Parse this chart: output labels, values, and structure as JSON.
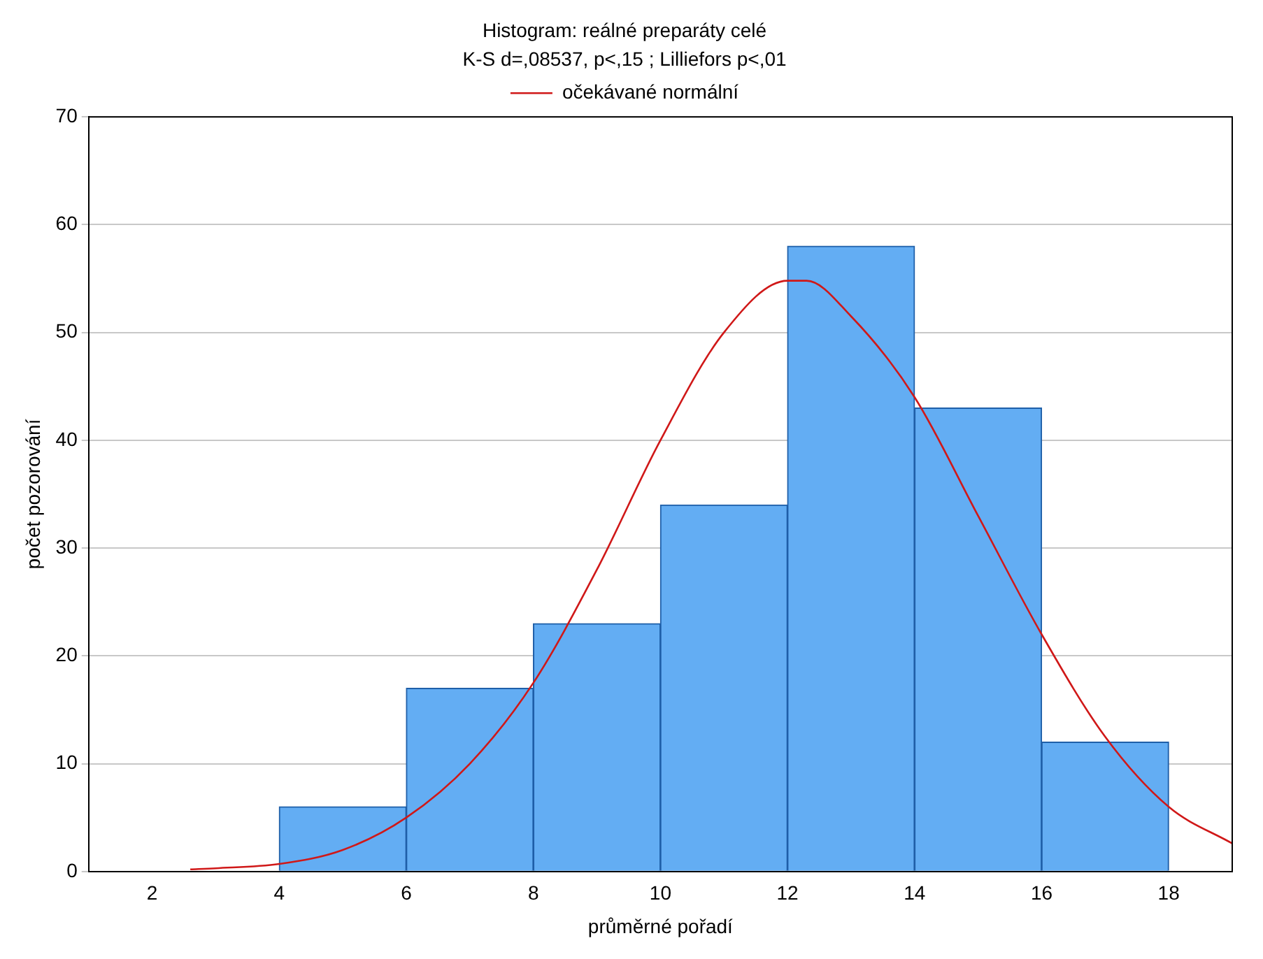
{
  "chart_data": {
    "type": "histogram",
    "title": "Histogram: reálné preparáty celé",
    "subtitle": "K-S d=,08537, p<,15 ; Lilliefors p<,01",
    "xlabel": "průměrné pořadí",
    "ylabel": "počet pozorování",
    "bins": [
      4,
      6,
      8,
      10,
      12,
      14,
      16,
      18
    ],
    "values": [
      6,
      17,
      23,
      34,
      58,
      43,
      12
    ],
    "color": "#63adf3",
    "series": [
      {
        "type": "line",
        "name": "očekávané normální",
        "color": "#d01818",
        "x": [
          2.6,
          3,
          4,
          5,
          6,
          7,
          8,
          9,
          10,
          11,
          12,
          12.3,
          13,
          14,
          15,
          16,
          17,
          18,
          19
        ],
        "values": [
          0.2,
          0.3,
          0.7,
          2,
          5,
          10,
          17.5,
          28,
          40,
          50,
          54.8,
          54.8,
          51.5,
          44,
          33,
          22,
          12.5,
          6,
          2.6
        ]
      }
    ],
    "xlim": [
      1,
      19
    ],
    "xticks": [
      2,
      4,
      6,
      8,
      10,
      12,
      14,
      16,
      18
    ],
    "ylim": [
      0,
      70
    ],
    "yticks": [
      0,
      10,
      20,
      30,
      40,
      50,
      60,
      70
    ],
    "grid": "y",
    "legend": "top",
    "marker": "none",
    "line_style": "solid"
  }
}
